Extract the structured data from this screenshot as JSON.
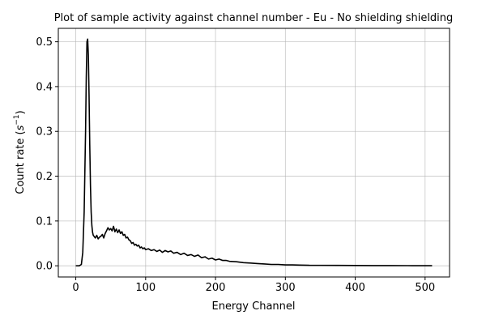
{
  "chart_data": {
    "type": "line",
    "title": "Plot of sample activity against channel number - Eu - No shielding shielding",
    "xlabel": "Energy Channel",
    "ylabel_main": "Count rate (",
    "ylabel_unit": "s",
    "ylabel_exp": "−1",
    "ylabel_end": ")",
    "xlim": [
      -25,
      535
    ],
    "ylim": [
      -0.025,
      0.53
    ],
    "xticks": [
      0,
      100,
      200,
      300,
      400,
      500
    ],
    "xtick_labels": [
      "0",
      "100",
      "200",
      "300",
      "400",
      "500"
    ],
    "yticks": [
      0.0,
      0.1,
      0.2,
      0.3,
      0.4,
      0.5
    ],
    "ytick_labels": [
      "0.0",
      "0.1",
      "0.2",
      "0.3",
      "0.4",
      "0.5"
    ],
    "grid": true,
    "series": [
      {
        "color": "#000000",
        "x": [
          0,
          5,
          8,
          10,
          12,
          14,
          15,
          16,
          17,
          18,
          19,
          20,
          21,
          22,
          23,
          24,
          25,
          26,
          28,
          30,
          32,
          34,
          36,
          38,
          40,
          42,
          44,
          46,
          48,
          50,
          52,
          54,
          56,
          58,
          60,
          62,
          64,
          66,
          68,
          70,
          72,
          74,
          76,
          78,
          80,
          82,
          84,
          86,
          88,
          90,
          92,
          94,
          96,
          98,
          100,
          104,
          108,
          112,
          116,
          120,
          124,
          128,
          132,
          136,
          140,
          145,
          150,
          155,
          160,
          165,
          170,
          175,
          180,
          185,
          190,
          195,
          200,
          205,
          210,
          215,
          220,
          230,
          240,
          250,
          260,
          270,
          280,
          290,
          300,
          310,
          320,
          335,
          350,
          375,
          400,
          425,
          450,
          475,
          500,
          510
        ],
        "y": [
          0.0,
          0.0,
          0.003,
          0.03,
          0.12,
          0.3,
          0.42,
          0.5,
          0.506,
          0.47,
          0.38,
          0.27,
          0.18,
          0.12,
          0.09,
          0.075,
          0.068,
          0.066,
          0.062,
          0.068,
          0.06,
          0.064,
          0.066,
          0.07,
          0.062,
          0.072,
          0.078,
          0.085,
          0.08,
          0.083,
          0.078,
          0.088,
          0.076,
          0.082,
          0.074,
          0.08,
          0.072,
          0.076,
          0.068,
          0.07,
          0.062,
          0.064,
          0.058,
          0.056,
          0.05,
          0.052,
          0.046,
          0.048,
          0.044,
          0.046,
          0.04,
          0.042,
          0.038,
          0.04,
          0.036,
          0.038,
          0.034,
          0.036,
          0.032,
          0.035,
          0.03,
          0.034,
          0.031,
          0.033,
          0.028,
          0.03,
          0.025,
          0.028,
          0.023,
          0.025,
          0.021,
          0.024,
          0.018,
          0.02,
          0.015,
          0.017,
          0.013,
          0.015,
          0.012,
          0.012,
          0.01,
          0.009,
          0.007,
          0.006,
          0.005,
          0.004,
          0.003,
          0.003,
          0.002,
          0.002,
          0.0015,
          0.001,
          0.001,
          0.0008,
          0.0006,
          0.0005,
          0.0004,
          0.0003,
          0.0002,
          0.0002
        ]
      }
    ]
  }
}
